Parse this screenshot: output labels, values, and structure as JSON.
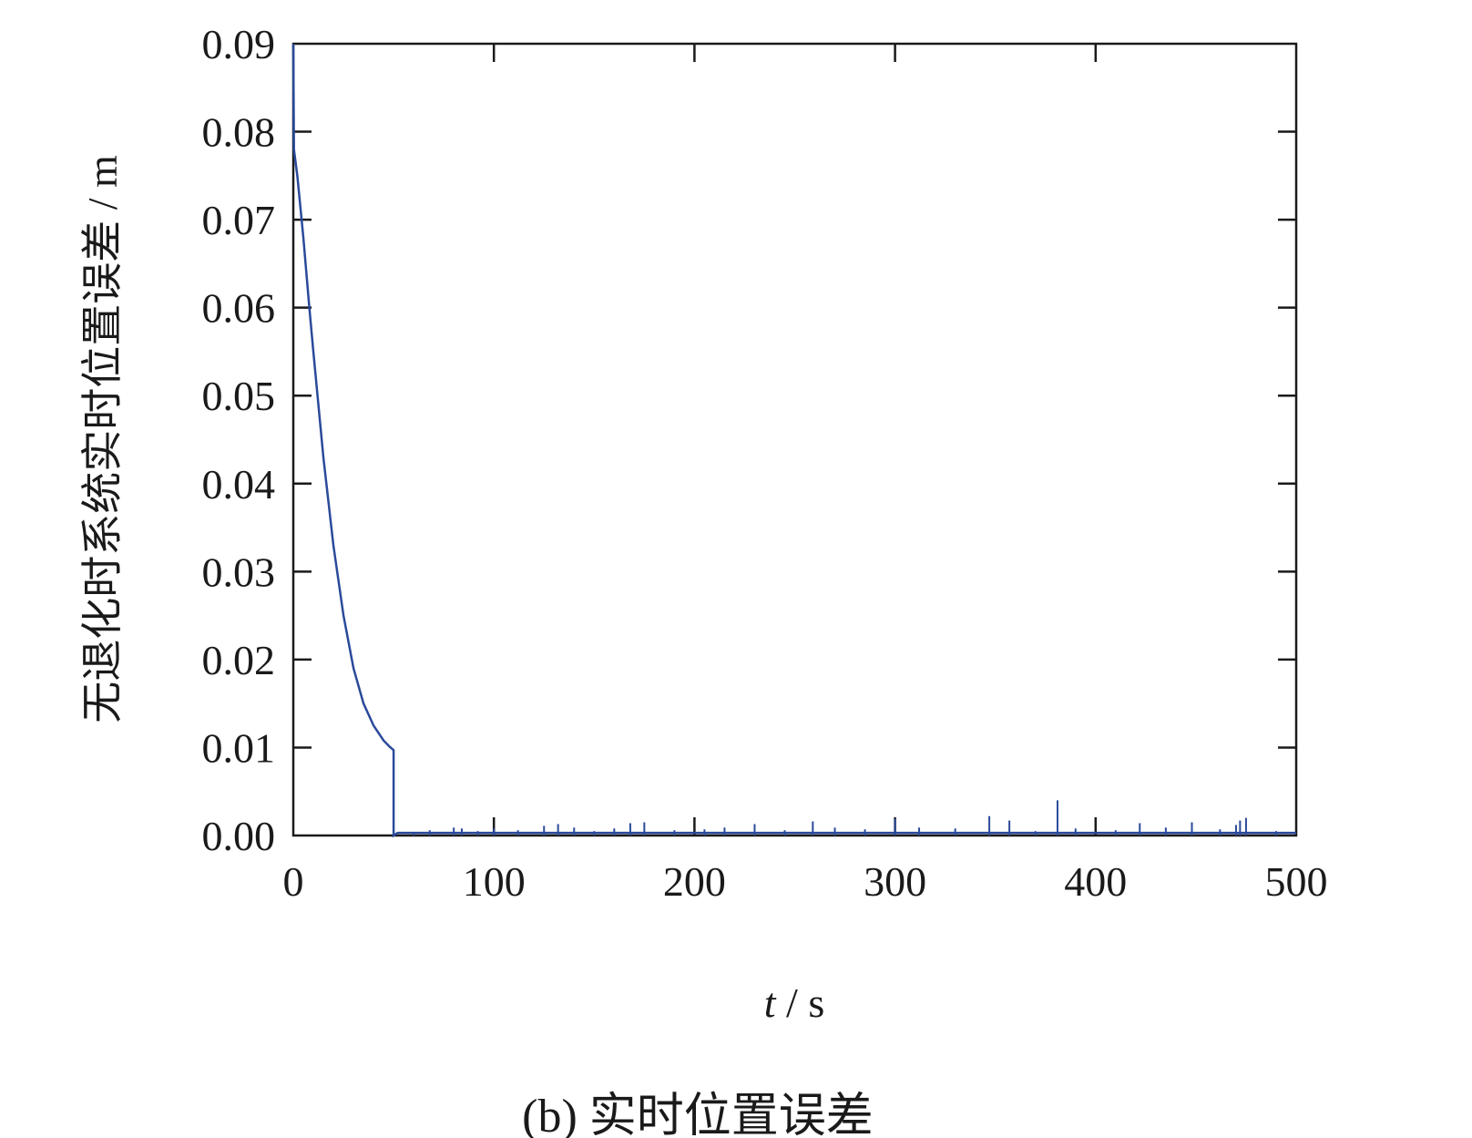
{
  "chart_data": {
    "type": "line",
    "caption": "(b) 实时位置误差",
    "xlabel_var": "t",
    "xlabel_unit": " / s",
    "ylabel": "无退化时系统实时位置误差 / m",
    "xlim": [
      0,
      500
    ],
    "ylim": [
      0,
      0.09
    ],
    "x_ticks": [
      "0",
      "100",
      "200",
      "300",
      "400",
      "500"
    ],
    "y_ticks": [
      "0.00",
      "0.01",
      "0.02",
      "0.03",
      "0.04",
      "0.05",
      "0.06",
      "0.07",
      "0.08",
      "0.09"
    ],
    "grid": false,
    "line_color": "#2a4a9a",
    "series": [
      {
        "x": [
          0,
          0.3,
          2,
          5,
          8,
          10,
          15,
          20,
          25,
          30,
          35,
          40,
          45,
          48,
          50,
          50,
          52,
          500
        ],
        "y": [
          0.09,
          0.078,
          0.075,
          0.068,
          0.06,
          0.055,
          0.043,
          0.033,
          0.025,
          0.019,
          0.015,
          0.0125,
          0.0108,
          0.0101,
          0.0097,
          0.0,
          0.0003,
          0.0003
        ]
      }
    ],
    "spikes": {
      "x": [
        60,
        68,
        80,
        84,
        92,
        100,
        112,
        125,
        132,
        140,
        150,
        160,
        168,
        175,
        190,
        205,
        215,
        230,
        245,
        259,
        270,
        285,
        300,
        312,
        330,
        347,
        357,
        370,
        381,
        390,
        410,
        422,
        435,
        448,
        462,
        470,
        472,
        475,
        490
      ],
      "y": [
        0.0004,
        0.0006,
        0.0009,
        0.0008,
        0.0005,
        0.0008,
        0.0006,
        0.0011,
        0.0013,
        0.0009,
        0.0005,
        0.0008,
        0.0014,
        0.0015,
        0.0006,
        0.0007,
        0.0009,
        0.0013,
        0.0006,
        0.0016,
        0.0009,
        0.0007,
        0.0019,
        0.0009,
        0.0008,
        0.0022,
        0.0017,
        0.0005,
        0.004,
        0.0008,
        0.0006,
        0.0014,
        0.0009,
        0.0015,
        0.0007,
        0.0012,
        0.0017,
        0.002,
        0.0005
      ]
    }
  }
}
